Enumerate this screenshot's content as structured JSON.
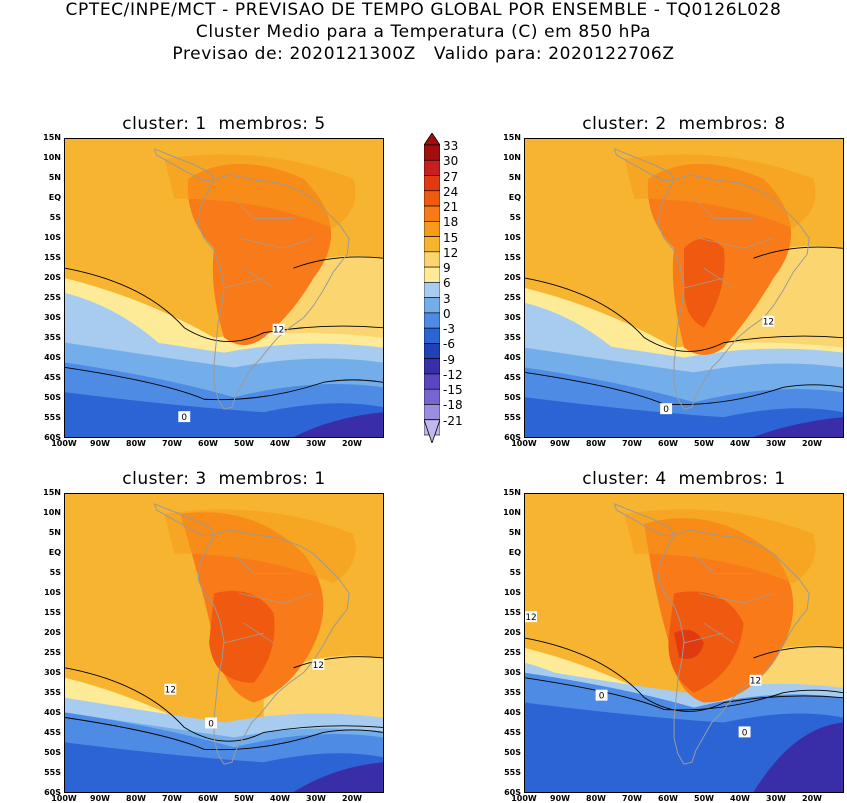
{
  "header": {
    "line1": "CPTEC/INPE/MCT - PREVISAO DE TEMPO GLOBAL POR ENSEMBLE - TQ0126L028",
    "line2": "Cluster Medio para a Temperatura (C) em 850 hPa",
    "line3": "Previsao de: 2020121300Z   Valido para: 2020122706Z"
  },
  "panels": [
    {
      "title": "cluster: 1  membros: 5",
      "contour_labels": [
        "12",
        "0"
      ]
    },
    {
      "title": "cluster: 2  membros: 8",
      "contour_labels": [
        "12",
        "0"
      ]
    },
    {
      "title": "cluster: 3  membros: 1",
      "contour_labels": [
        "12",
        "12",
        "0"
      ]
    },
    {
      "title": "cluster: 4  membros: 1",
      "contour_labels": [
        "12",
        "12",
        "0",
        "0"
      ]
    }
  ],
  "lat_ticks": [
    "15N",
    "10N",
    "5N",
    "EQ",
    "5S",
    "10S",
    "15S",
    "20S",
    "25S",
    "30S",
    "35S",
    "40S",
    "45S",
    "50S",
    "55S",
    "60S"
  ],
  "lon_ticks": [
    "100W",
    "90W",
    "80W",
    "70W",
    "60W",
    "50W",
    "40W",
    "30W",
    "20W"
  ],
  "colorbar": {
    "labels": [
      "33",
      "30",
      "27",
      "24",
      "21",
      "18",
      "15",
      "12",
      "9",
      "6",
      "3",
      "0",
      "-3",
      "-6",
      "-9",
      "-12",
      "-15",
      "-18",
      "-21"
    ],
    "colors": [
      "#a00e0e",
      "#c82020",
      "#e03a10",
      "#f05a10",
      "#f87a18",
      "#f59a1a",
      "#f7b430",
      "#fbd670",
      "#fdeb98",
      "#a8ccf0",
      "#74aeea",
      "#4e8be4",
      "#2c64d6",
      "#2240b8",
      "#3a2ea8",
      "#5a46c0",
      "#7866d0",
      "#9a8ede",
      "#c2b8ee"
    ]
  }
}
